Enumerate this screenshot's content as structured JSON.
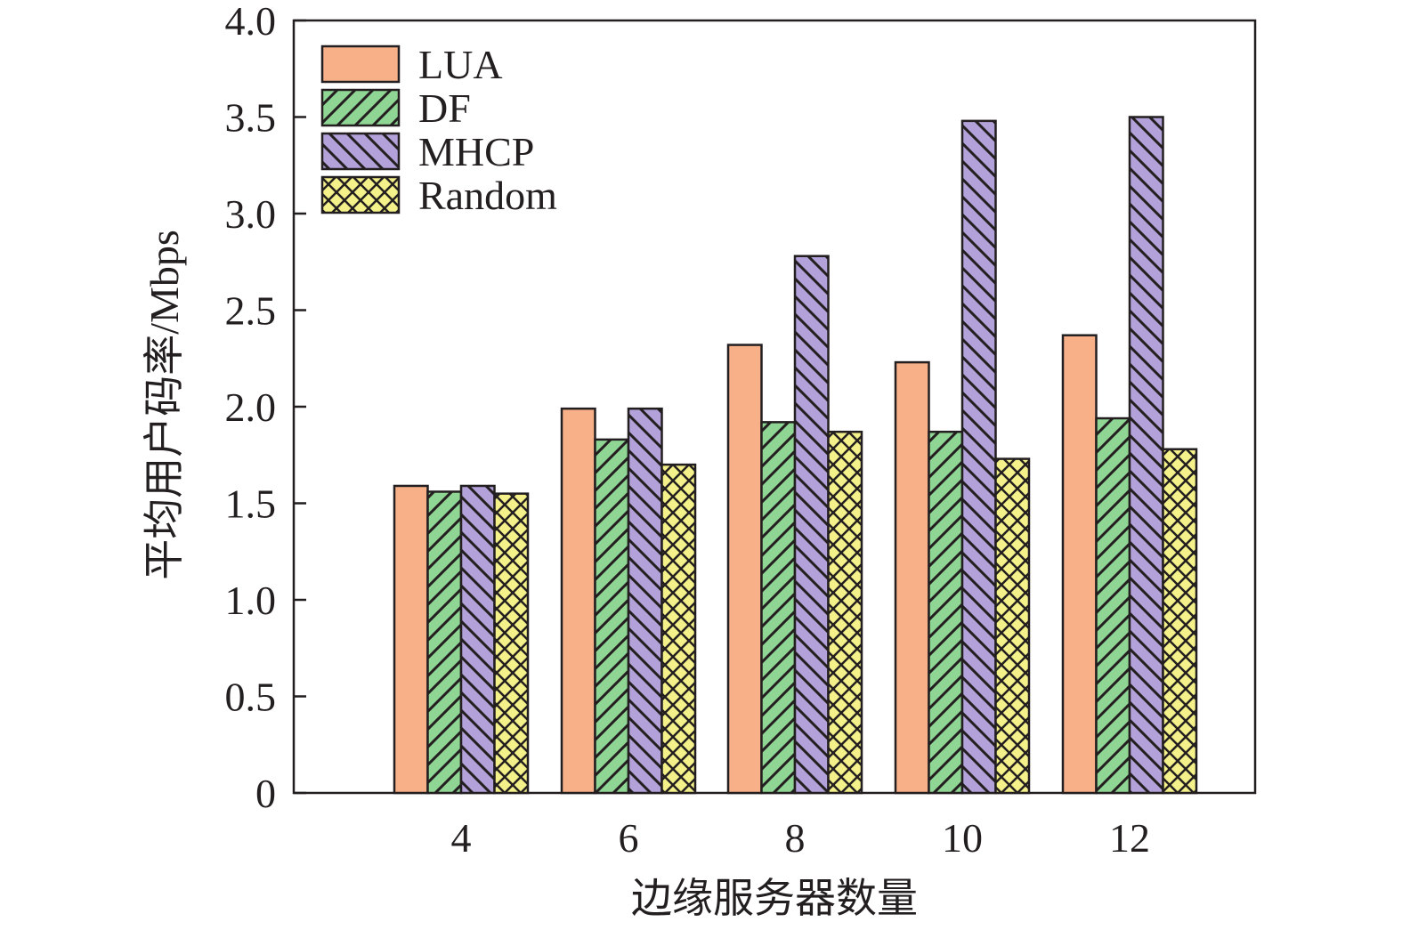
{
  "chart_data": {
    "type": "bar",
    "title": "",
    "xlabel": "边缘服务器数量",
    "ylabel": "平均用户码率/Mbps",
    "categories": [
      "4",
      "6",
      "8",
      "10",
      "12"
    ],
    "ylim": [
      0,
      4.0
    ],
    "yticks": [
      "0",
      "0.5",
      "1.0",
      "1.5",
      "2.0",
      "2.5",
      "3.0",
      "3.5",
      "4.0"
    ],
    "grid": false,
    "legend_position": "top-left",
    "series": [
      {
        "name": "LUA",
        "values": [
          1.59,
          1.99,
          2.32,
          2.23,
          2.37
        ],
        "color": "#f7b088",
        "pattern": "solid"
      },
      {
        "name": "DF",
        "values": [
          1.56,
          1.83,
          1.92,
          1.87,
          1.94
        ],
        "color": "#8fd694",
        "pattern": "hatch-forward"
      },
      {
        "name": "MHCP",
        "values": [
          1.59,
          1.99,
          2.78,
          3.48,
          3.5
        ],
        "color": "#b3a2d9",
        "pattern": "hatch-backward"
      },
      {
        "name": "Random",
        "values": [
          1.55,
          1.7,
          1.87,
          1.73,
          1.78
        ],
        "color": "#f4f08a",
        "pattern": "crosshatch"
      }
    ]
  }
}
